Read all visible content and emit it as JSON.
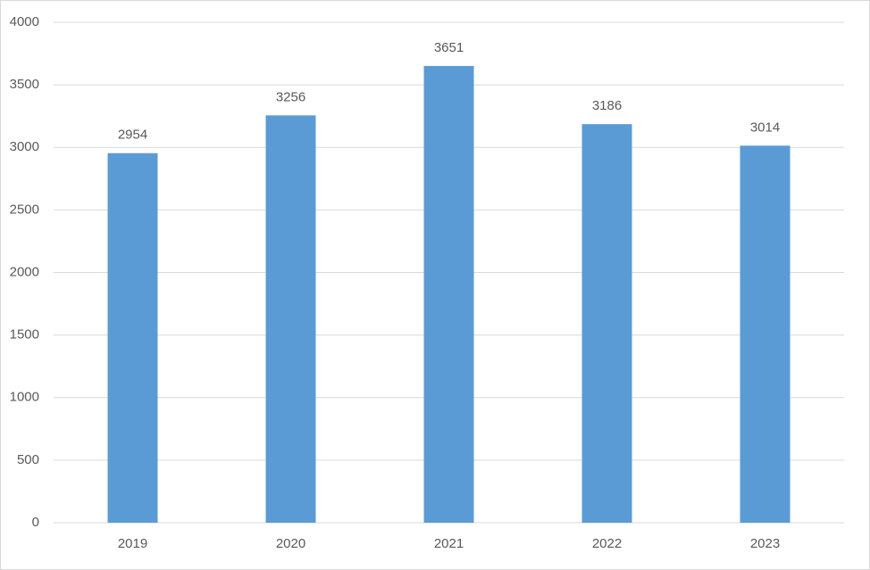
{
  "chart_data": {
    "type": "bar",
    "categories": [
      "2019",
      "2020",
      "2021",
      "2022",
      "2023"
    ],
    "values": [
      2954,
      3256,
      3651,
      3186,
      3014
    ],
    "color": "#5b9bd5",
    "ylim": [
      0,
      4000
    ],
    "yticks": [
      0,
      500,
      1000,
      1500,
      2000,
      2500,
      3000,
      3500,
      4000
    ],
    "grid": true
  }
}
